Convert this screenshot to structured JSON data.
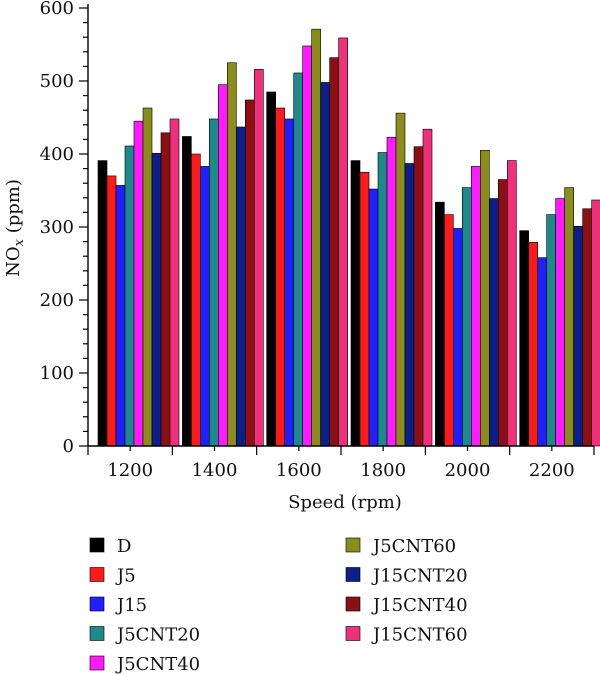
{
  "chart_data": {
    "type": "bar",
    "xlabel": "Speed (rpm)",
    "ylabel_main": "NO",
    "ylabel_sub": "x",
    "ylabel_unit": " (ppm)",
    "ylim": [
      0,
      600
    ],
    "yticks": [
      "0",
      "100",
      "200",
      "300",
      "400",
      "500",
      "600"
    ],
    "categories": [
      "1200",
      "1400",
      "1600",
      "1800",
      "2000",
      "2200"
    ],
    "series": [
      {
        "name": "D",
        "color": "#000000",
        "values": [
          391,
          424,
          485,
          391,
          334,
          295
        ]
      },
      {
        "name": "J5",
        "color": "#ff1a1a",
        "values": [
          370,
          400,
          463,
          375,
          317,
          279
        ]
      },
      {
        "name": "J15",
        "color": "#1f1fff",
        "values": [
          357,
          383,
          448,
          352,
          298,
          258
        ]
      },
      {
        "name": "J5CNT20",
        "color": "#1c8a8a",
        "values": [
          411,
          448,
          511,
          402,
          354,
          317
        ]
      },
      {
        "name": "J5CNT40",
        "color": "#ff1aff",
        "values": [
          445,
          495,
          548,
          423,
          383,
          339
        ]
      },
      {
        "name": "J5CNT60",
        "color": "#8c8c1a",
        "values": [
          463,
          525,
          571,
          456,
          405,
          354
        ]
      },
      {
        "name": "J15CNT20",
        "color": "#0a1f8c",
        "values": [
          401,
          437,
          498,
          387,
          339,
          301
        ]
      },
      {
        "name": "J15CNT40",
        "color": "#8c0f14",
        "values": [
          429,
          474,
          532,
          410,
          365,
          325
        ]
      },
      {
        "name": "J15CNT60",
        "color": "#f0307a",
        "values": [
          448,
          516,
          559,
          434,
          391,
          337
        ]
      }
    ],
    "legend_position": "bottom"
  }
}
